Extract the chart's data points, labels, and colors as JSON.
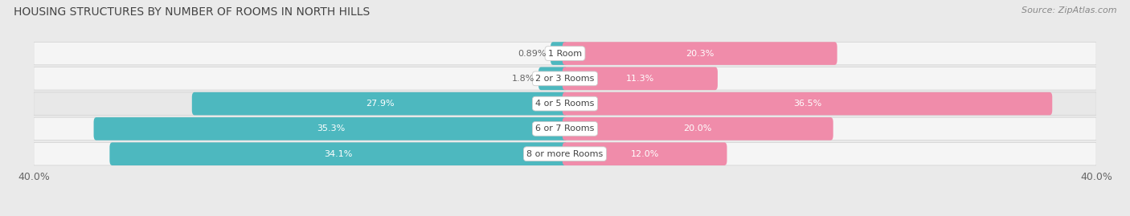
{
  "title": "HOUSING STRUCTURES BY NUMBER OF ROOMS IN NORTH HILLS",
  "source": "Source: ZipAtlas.com",
  "categories": [
    "1 Room",
    "2 or 3 Rooms",
    "4 or 5 Rooms",
    "6 or 7 Rooms",
    "8 or more Rooms"
  ],
  "owner_values": [
    0.89,
    1.8,
    27.9,
    35.3,
    34.1
  ],
  "renter_values": [
    20.3,
    11.3,
    36.5,
    20.0,
    12.0
  ],
  "owner_color": "#4db8bf",
  "renter_color": "#f08caa",
  "axis_max": 40.0,
  "bar_height": 0.52,
  "background_color": "#eaeaea",
  "row_color_light": "#f5f5f5",
  "row_color_dark": "#e8e8e8",
  "title_fontsize": 10,
  "source_fontsize": 8,
  "label_fontsize": 8,
  "cat_fontsize": 8,
  "axis_label_fontsize": 9
}
